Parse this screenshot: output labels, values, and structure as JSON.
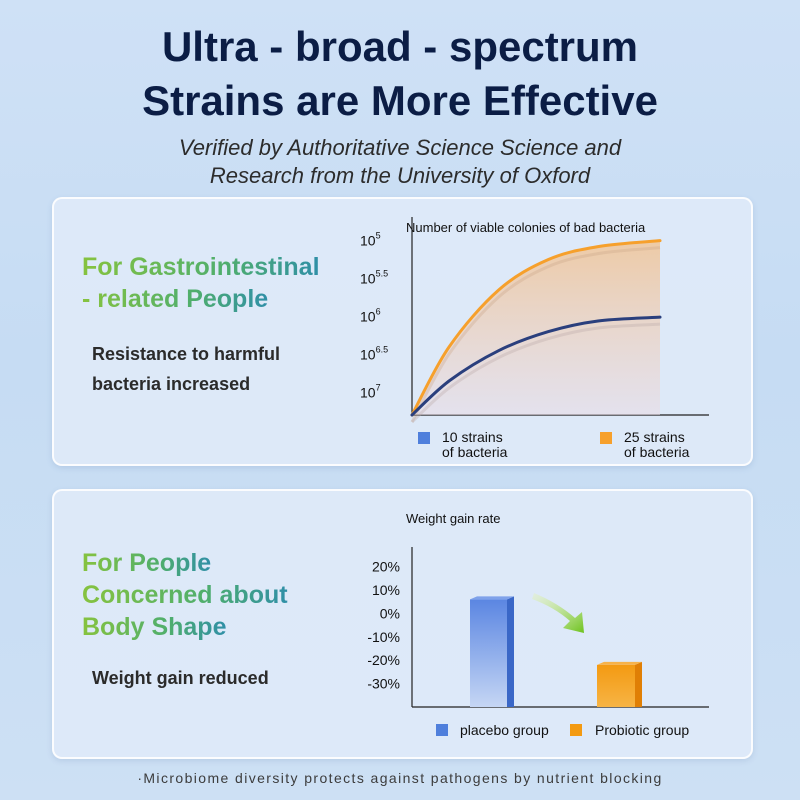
{
  "header": {
    "title_line1": "Ultra - broad - spectrum",
    "title_line2": "Strains are More Effective",
    "subtitle_line1": "Verified by Authoritative Science Science and",
    "subtitle_line2": "Research from the University of Oxford"
  },
  "card1": {
    "heading_line1": "For Gastrointestinal",
    "heading_line2": "- related People",
    "desc_line1": "Resistance to harmful",
    "desc_line2": "bacteria increased"
  },
  "card2": {
    "heading_line1": "For People",
    "heading_line2": "Concerned about",
    "heading_line3": "Body Shape",
    "desc": "Weight gain reduced"
  },
  "footer": "·Microbiome diversity protects against pathogens by nutrient blocking",
  "colors": {
    "blue": "#2a3f7d",
    "orange": "#f6a02c",
    "bar_blue": "#4f7fdc",
    "bar_orange": "#f39a12"
  },
  "chart_data": [
    {
      "type": "line",
      "title": "Number of viable colonies of bad bacteria",
      "y_ticks": [
        {
          "base": "10",
          "exp": "5"
        },
        {
          "base": "10",
          "exp": "5.5"
        },
        {
          "base": "10",
          "exp": "6"
        },
        {
          "base": "10",
          "exp": "6.5"
        },
        {
          "base": "10",
          "exp": "7"
        }
      ],
      "y_tick_values": [
        5,
        5.5,
        6,
        6.5,
        7
      ],
      "ylim": [
        7.3,
        4.9
      ],
      "x_range": [
        0,
        1
      ],
      "series": [
        {
          "name": "10 strains\nof bacteria",
          "name_line1": "10 strains",
          "name_line2": "of bacteria",
          "color": "#2a3f7d",
          "points": [
            [
              0,
              7.3
            ],
            [
              0.15,
              6.85
            ],
            [
              0.35,
              6.45
            ],
            [
              0.55,
              6.2
            ],
            [
              0.75,
              6.06
            ],
            [
              1,
              6.01
            ]
          ]
        },
        {
          "name": "25 strains\nof bacteria",
          "name_line1": "25 strains",
          "name_line2": "of bacteria",
          "color": "#f6a02c",
          "points": [
            [
              0,
              7.3
            ],
            [
              0.15,
              6.4
            ],
            [
              0.35,
              5.65
            ],
            [
              0.55,
              5.25
            ],
            [
              0.75,
              5.08
            ],
            [
              1,
              5.0
            ]
          ]
        }
      ],
      "legend": "bottom"
    },
    {
      "type": "bar",
      "title": "Weight gain rate",
      "y_ticks": [
        "20%",
        "10%",
        "0%",
        "-10%",
        "-20%",
        "-30%"
      ],
      "y_tick_values": [
        20,
        10,
        0,
        -10,
        -20,
        -30
      ],
      "ylim": [
        -40,
        25
      ],
      "categories": [
        "placebo group",
        "Probiotic group"
      ],
      "values": [
        6,
        -22
      ],
      "bar_base": -40,
      "series_colors": [
        "#4f7fdc",
        "#f39a12"
      ],
      "legend": "bottom"
    }
  ]
}
